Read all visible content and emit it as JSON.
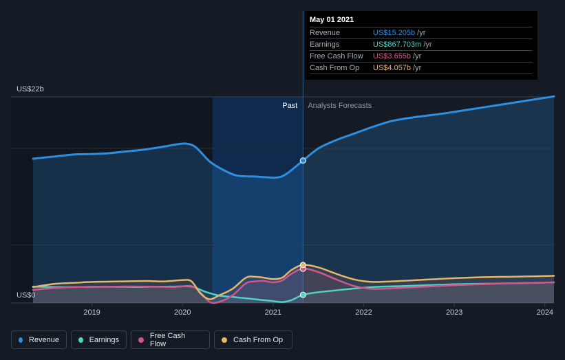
{
  "chart_data": {
    "type": "area",
    "title": "",
    "y_top_label": "US$22b",
    "y_bottom_label": "US$0",
    "ylim": [
      0,
      22
    ],
    "xlim": [
      2018.35,
      2024.1
    ],
    "x_ticks": [
      2019,
      2020,
      2021,
      2022,
      2023,
      2024
    ],
    "x_tick_labels": [
      "2019",
      "2020",
      "2021",
      "2022",
      "2023",
      "2024"
    ],
    "past_label": "Past",
    "forecast_label": "Analysts Forecasts",
    "past_end_x": 2021.33,
    "highlight_start_x": 2020.33,
    "series": [
      {
        "name": "Revenue",
        "color": "#2e8fe0",
        "x": [
          2018.35,
          2018.6,
          2018.8,
          2019.0,
          2019.2,
          2019.4,
          2019.6,
          2019.8,
          2019.95,
          2020.05,
          2020.15,
          2020.3,
          2020.45,
          2020.6,
          2020.8,
          2020.95,
          2021.05,
          2021.15,
          2021.33,
          2021.5,
          2021.7,
          2021.9,
          2022.1,
          2022.3,
          2022.5,
          2022.7,
          2022.9,
          2023.1,
          2023.3,
          2023.5,
          2023.7,
          2023.9,
          2024.1
        ],
        "values": [
          15.4,
          15.65,
          15.85,
          15.9,
          16.0,
          16.2,
          16.4,
          16.7,
          16.95,
          17.0,
          16.6,
          15.1,
          14.2,
          13.6,
          13.5,
          13.4,
          13.4,
          13.8,
          15.205,
          16.5,
          17.4,
          18.1,
          18.8,
          19.4,
          19.75,
          20.0,
          20.25,
          20.55,
          20.85,
          21.15,
          21.45,
          21.75,
          22.05
        ]
      },
      {
        "name": "Earnings",
        "color": "#4fd1c5",
        "x": [
          2018.35,
          2018.6,
          2018.8,
          2019.0,
          2019.3,
          2019.6,
          2019.9,
          2020.1,
          2020.25,
          2020.4,
          2020.6,
          2020.8,
          2021.0,
          2021.1,
          2021.2,
          2021.33,
          2021.5,
          2021.7,
          2021.9,
          2022.1,
          2022.4,
          2022.7,
          2023.0,
          2023.3,
          2023.6,
          2023.9,
          2024.1
        ],
        "values": [
          1.75,
          1.7,
          1.7,
          1.72,
          1.72,
          1.72,
          1.75,
          1.75,
          1.2,
          0.8,
          0.6,
          0.4,
          0.2,
          0.1,
          0.3,
          0.868,
          1.15,
          1.35,
          1.55,
          1.7,
          1.8,
          1.9,
          2.0,
          2.05,
          2.1,
          2.15,
          2.2
        ]
      },
      {
        "name": "Free Cash Flow",
        "color": "#d4548e",
        "x": [
          2018.35,
          2018.6,
          2018.8,
          2019.0,
          2019.3,
          2019.6,
          2019.9,
          2020.1,
          2020.2,
          2020.3,
          2020.4,
          2020.55,
          2020.7,
          2020.8,
          2020.9,
          2021.0,
          2021.1,
          2021.2,
          2021.33,
          2021.5,
          2021.7,
          2021.9,
          2022.1,
          2022.4,
          2022.7,
          2023.0,
          2023.3,
          2023.6,
          2023.9,
          2024.1
        ],
        "values": [
          1.4,
          1.6,
          1.7,
          1.7,
          1.75,
          1.75,
          1.7,
          1.8,
          1.1,
          0.1,
          0.1,
          0.8,
          2.1,
          2.3,
          2.35,
          2.2,
          2.4,
          3.1,
          3.655,
          3.3,
          2.5,
          1.8,
          1.5,
          1.6,
          1.75,
          1.9,
          2.0,
          2.1,
          2.15,
          2.2
        ]
      },
      {
        "name": "Cash From Op",
        "color": "#e8b56a",
        "x": [
          2018.35,
          2018.6,
          2018.8,
          2019.0,
          2019.3,
          2019.6,
          2019.8,
          2020.0,
          2020.1,
          2020.2,
          2020.3,
          2020.4,
          2020.55,
          2020.7,
          2020.8,
          2020.9,
          2021.0,
          2021.1,
          2021.2,
          2021.33,
          2021.5,
          2021.7,
          2021.9,
          2022.1,
          2022.4,
          2022.7,
          2023.0,
          2023.3,
          2023.6,
          2023.9,
          2024.1
        ],
        "values": [
          1.7,
          2.05,
          2.15,
          2.25,
          2.3,
          2.35,
          2.3,
          2.45,
          2.3,
          1.0,
          0.4,
          0.8,
          1.5,
          2.7,
          2.8,
          2.7,
          2.55,
          2.7,
          3.5,
          4.057,
          3.8,
          3.1,
          2.5,
          2.25,
          2.35,
          2.5,
          2.65,
          2.75,
          2.8,
          2.85,
          2.9
        ]
      }
    ]
  },
  "tooltip": {
    "date": "May 01 2021",
    "rows": [
      {
        "label": "Revenue",
        "value": "US$15.205b",
        "unit": "/yr",
        "color": "#2e8fe0"
      },
      {
        "label": "Earnings",
        "value": "US$867.703m",
        "unit": "/yr",
        "color": "#4fd1c5"
      },
      {
        "label": "Free Cash Flow",
        "value": "US$3.655b",
        "unit": "/yr",
        "color": "#d4548e"
      },
      {
        "label": "Cash From Op",
        "value": "US$4.057b",
        "unit": "/yr",
        "color": "#e8b56a"
      }
    ]
  },
  "legend": [
    {
      "label": "Revenue",
      "color": "#2e8fe0"
    },
    {
      "label": "Earnings",
      "color": "#4fd1c5"
    },
    {
      "label": "Free Cash Flow",
      "color": "#d4548e"
    },
    {
      "label": "Cash From Op",
      "color": "#e8b56a"
    }
  ]
}
